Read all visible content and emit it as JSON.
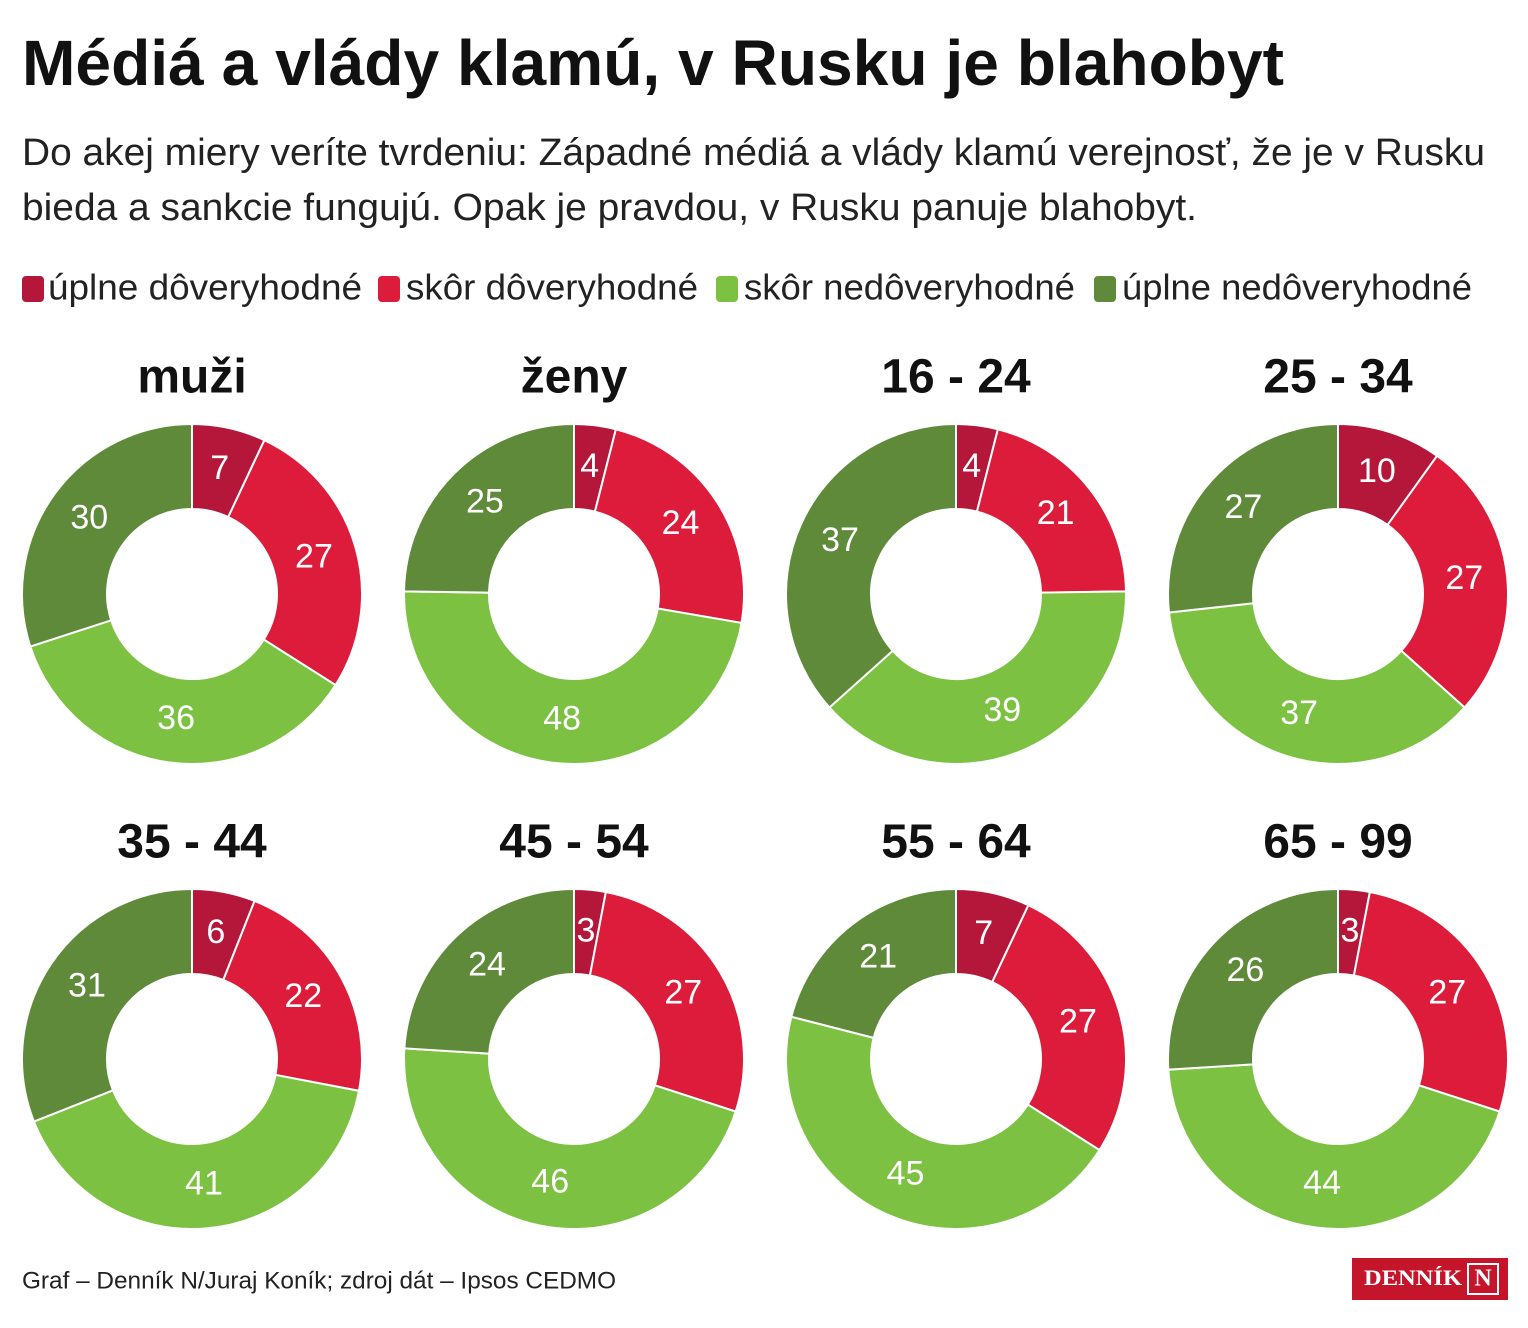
{
  "title": "Médiá a vlády klamú, v Rusku je blahobyt",
  "subtitle": [
    "Do akej miery veríte tvrdeniu: Západné médiá a vlády klamú verejnosť, že je v Rusku",
    "bieda a sankcie fungujú. Opak je pravdou, v Rusku panuje blahobyt."
  ],
  "legend": [
    {
      "name": "úplne dôveryhodné",
      "color": "#b5173a"
    },
    {
      "name": "skôr dôveryhodné",
      "color": "#dc1c3a"
    },
    {
      "name": "skôr nedôveryhodné",
      "color": "#7cc142"
    },
    {
      "name": "úplne nedôveryhodné",
      "color": "#5e8a3a"
    }
  ],
  "chart_data": [
    {
      "type": "donut",
      "title": "muži",
      "values": [
        7,
        27,
        36,
        30
      ]
    },
    {
      "type": "donut",
      "title": "ženy",
      "values": [
        4,
        24,
        48,
        25
      ]
    },
    {
      "type": "donut",
      "title": "16 - 24",
      "values": [
        4,
        21,
        39,
        37
      ]
    },
    {
      "type": "donut",
      "title": "25 - 34",
      "values": [
        10,
        27,
        37,
        27
      ]
    },
    {
      "type": "donut",
      "title": "35 - 44",
      "values": [
        6,
        22,
        41,
        31
      ]
    },
    {
      "type": "donut",
      "title": "45 - 54",
      "values": [
        3,
        27,
        46,
        24
      ]
    },
    {
      "type": "donut",
      "title": "55 - 64",
      "values": [
        7,
        27,
        45,
        21
      ]
    },
    {
      "type": "donut",
      "title": "65 - 99",
      "values": [
        3,
        27,
        44,
        26
      ]
    }
  ],
  "footer": "Graf – Denník N/Juraj Koník; zdroj dát – Ipsos CEDMO",
  "logo": [
    "DENNÍK",
    "N"
  ]
}
